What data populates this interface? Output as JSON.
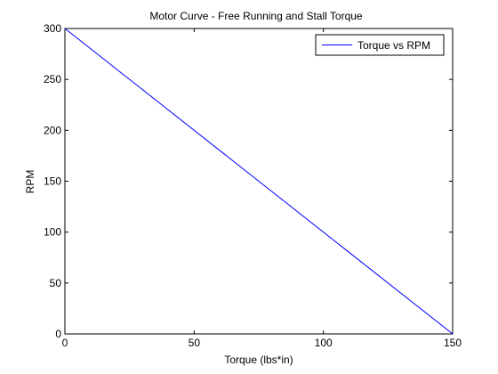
{
  "chart_data": {
    "type": "line",
    "title": "Motor Curve - Free Running and Stall Torque",
    "xlabel": "Torque (lbs*in)",
    "ylabel": "RPM",
    "xlim": [
      0,
      150
    ],
    "ylim": [
      0,
      300
    ],
    "x_ticks": [
      0,
      50,
      100,
      150
    ],
    "y_ticks": [
      0,
      50,
      100,
      150,
      200,
      250,
      300
    ],
    "x_tick_labels": [
      "0",
      "50",
      "100",
      "150"
    ],
    "y_tick_labels": [
      "0",
      "50",
      "100",
      "150",
      "200",
      "250",
      "300"
    ],
    "grid": false,
    "legend_position": "top-right",
    "series": [
      {
        "name": "Torque vs RPM",
        "color": "#0000ff",
        "x": [
          0,
          150
        ],
        "y": [
          300,
          0
        ]
      }
    ]
  }
}
